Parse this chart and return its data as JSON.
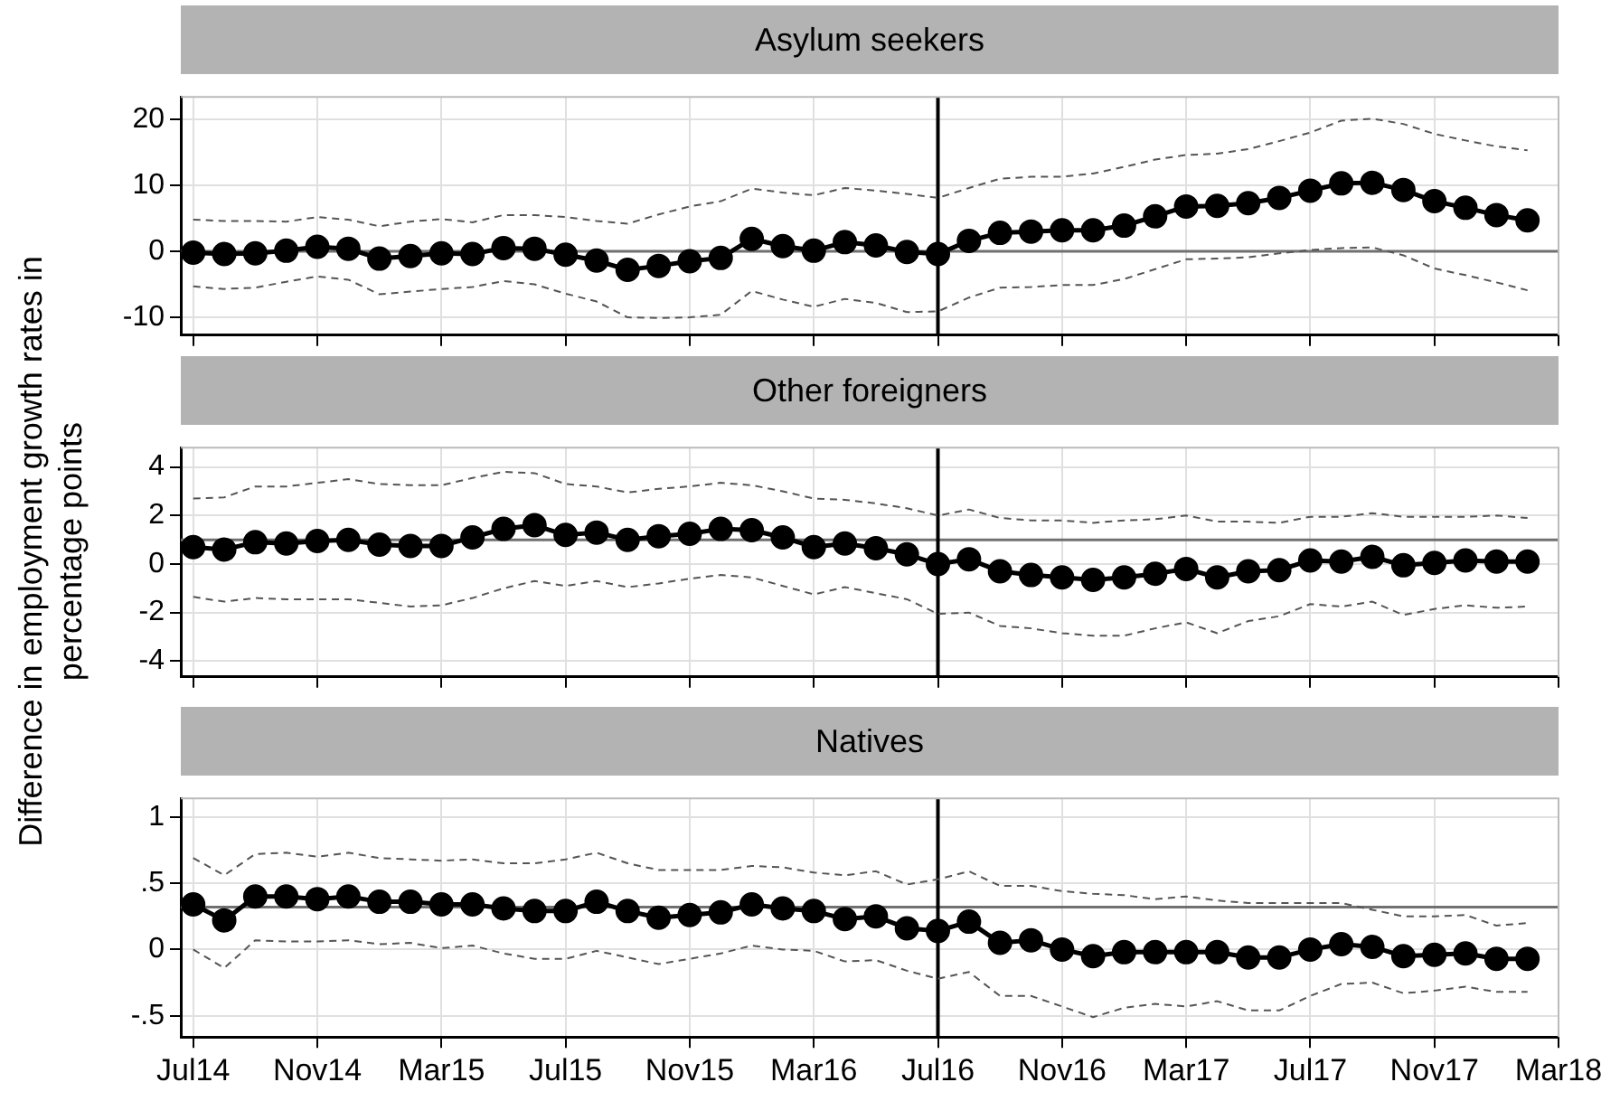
{
  "chart_data": [
    {
      "type": "line",
      "title": "Asylum seekers",
      "tick_labels": "y",
      "grid": true,
      "legend": false,
      "x": [
        "2014-07",
        "2014-08",
        "2014-09",
        "2014-10",
        "2014-11",
        "2014-12",
        "2015-01",
        "2015-02",
        "2015-03",
        "2015-04",
        "2015-05",
        "2015-06",
        "2015-07",
        "2015-08",
        "2015-09",
        "2015-10",
        "2015-11",
        "2015-12",
        "2016-01",
        "2016-02",
        "2016-03",
        "2016-04",
        "2016-05",
        "2016-06",
        "2016-07",
        "2016-08",
        "2016-09",
        "2016-10",
        "2016-11",
        "2016-12",
        "2017-01",
        "2017-02",
        "2017-03",
        "2017-04",
        "2017-05",
        "2017-06",
        "2017-07",
        "2017-08",
        "2017-09",
        "2017-10",
        "2017-11",
        "2017-12",
        "2018-01",
        "2018-02"
      ],
      "xlim": [
        "2014-06-19",
        "2018-03"
      ],
      "xticks": [
        {
          "value": "2014-07",
          "label": null
        },
        {
          "value": "2014-11",
          "label": null
        },
        {
          "value": "2015-03",
          "label": null
        },
        {
          "value": "2015-07",
          "label": null
        },
        {
          "value": "2015-11",
          "label": null
        },
        {
          "value": "2016-03",
          "label": null
        },
        {
          "value": "2016-07",
          "label": null
        },
        {
          "value": "2016-11",
          "label": null
        },
        {
          "value": "2017-03",
          "label": null
        },
        {
          "value": "2017-07",
          "label": null
        },
        {
          "value": "2017-11",
          "label": null
        },
        {
          "value": "2018-03",
          "label": null
        }
      ],
      "ylim": [
        -12.7,
        23.4
      ],
      "yticks": [
        -10,
        0,
        10,
        20
      ],
      "ref_lines": [
        {
          "axis": "y",
          "value": 0,
          "color": "#707070"
        },
        {
          "axis": "x",
          "value": "2016-07",
          "color": "#000000"
        }
      ],
      "series": [
        {
          "color": "#000000",
          "marker": "circle",
          "line_style": "solid",
          "values": [
            -0.2,
            -0.4,
            -0.3,
            0.1,
            0.7,
            0.4,
            -1.1,
            -0.7,
            -0.3,
            -0.4,
            0.5,
            0.4,
            -0.5,
            -1.4,
            -2.8,
            -2.2,
            -1.5,
            -1,
            1.9,
            0.8,
            0.1,
            1.4,
            0.9,
            -0.1,
            -0.4,
            1.6,
            2.8,
            3,
            3.2,
            3.2,
            3.9,
            5.3,
            6.8,
            6.9,
            7.3,
            8.1,
            9.2,
            10.3,
            10.4,
            9.3,
            7.6,
            6.6,
            5.5,
            4.7
          ]
        },
        {
          "color": "#555555",
          "marker": "none",
          "line_style": "dashed",
          "values": [
            4.8,
            4.6,
            4.6,
            4.5,
            5.2,
            4.8,
            3.8,
            4.5,
            4.9,
            4.4,
            5.5,
            5.5,
            5.2,
            4.6,
            4.2,
            5.6,
            6.8,
            7.6,
            9.5,
            8.9,
            8.5,
            9.6,
            9.2,
            8.7,
            8.1,
            9.6,
            11,
            11.3,
            11.3,
            11.8,
            12.8,
            13.9,
            14.6,
            14.8,
            15.5,
            16.7,
            18,
            19.8,
            20.1,
            19.3,
            17.8,
            16.8,
            15.9,
            15.3
          ]
        },
        {
          "color": "#555555",
          "marker": "none",
          "line_style": "dashed",
          "values": [
            -5.3,
            -5.7,
            -5.5,
            -4.6,
            -3.8,
            -4.3,
            -6.5,
            -6.1,
            -5.7,
            -5.4,
            -4.5,
            -5,
            -6.4,
            -7.6,
            -10,
            -10.1,
            -10,
            -9.6,
            -6,
            -7.3,
            -8.4,
            -7.2,
            -7.8,
            -9.2,
            -9.1,
            -7,
            -5.5,
            -5.4,
            -5.1,
            -5.1,
            -4.2,
            -2.7,
            -1.2,
            -1.1,
            -0.9,
            -0.3,
            0.2,
            0.5,
            0.6,
            -0.6,
            -2.6,
            -3.6,
            -4.7,
            -5.9
          ]
        }
      ]
    },
    {
      "type": "line",
      "title": "Other foreigners",
      "ylabel": "Difference in employment growth rates in percentage points",
      "tick_labels": "y",
      "grid": true,
      "legend": false,
      "x": [
        "2014-07",
        "2014-08",
        "2014-09",
        "2014-10",
        "2014-11",
        "2014-12",
        "2015-01",
        "2015-02",
        "2015-03",
        "2015-04",
        "2015-05",
        "2015-06",
        "2015-07",
        "2015-08",
        "2015-09",
        "2015-10",
        "2015-11",
        "2015-12",
        "2016-01",
        "2016-02",
        "2016-03",
        "2016-04",
        "2016-05",
        "2016-06",
        "2016-07",
        "2016-08",
        "2016-09",
        "2016-10",
        "2016-11",
        "2016-12",
        "2017-01",
        "2017-02",
        "2017-03",
        "2017-04",
        "2017-05",
        "2017-06",
        "2017-07",
        "2017-08",
        "2017-09",
        "2017-10",
        "2017-11",
        "2017-12",
        "2018-01",
        "2018-02"
      ],
      "xlim": [
        "2014-06-19",
        "2018-03"
      ],
      "xticks": [
        {
          "value": "2014-07",
          "label": null
        },
        {
          "value": "2014-11",
          "label": null
        },
        {
          "value": "2015-03",
          "label": null
        },
        {
          "value": "2015-07",
          "label": null
        },
        {
          "value": "2015-11",
          "label": null
        },
        {
          "value": "2016-03",
          "label": null
        },
        {
          "value": "2016-07",
          "label": null
        },
        {
          "value": "2016-11",
          "label": null
        },
        {
          "value": "2017-03",
          "label": null
        },
        {
          "value": "2017-07",
          "label": null
        },
        {
          "value": "2017-11",
          "label": null
        },
        {
          "value": "2018-03",
          "label": null
        }
      ],
      "ylim": [
        -4.65,
        4.8
      ],
      "yticks": [
        -4,
        -2,
        0,
        2,
        4
      ],
      "ref_lines": [
        {
          "axis": "y",
          "value": 1,
          "color": "#707070"
        },
        {
          "axis": "x",
          "value": "2016-07",
          "color": "#000000"
        }
      ],
      "series": [
        {
          "color": "#000000",
          "marker": "circle",
          "line_style": "solid",
          "values": [
            0.7,
            0.6,
            0.9,
            0.85,
            0.95,
            1.0,
            0.8,
            0.75,
            0.75,
            1.1,
            1.45,
            1.6,
            1.2,
            1.3,
            1.0,
            1.15,
            1.25,
            1.45,
            1.4,
            1.1,
            0.7,
            0.85,
            0.65,
            0.4,
            0,
            0.2,
            -0.3,
            -0.45,
            -0.55,
            -0.65,
            -0.55,
            -0.4,
            -0.2,
            -0.55,
            -0.3,
            -0.25,
            0.15,
            0.1,
            0.3,
            -0.05,
            0.05,
            0.15,
            0.1,
            0.1
          ]
        },
        {
          "color": "#555555",
          "marker": "none",
          "line_style": "dashed",
          "values": [
            2.7,
            2.75,
            3.2,
            3.2,
            3.35,
            3.5,
            3.3,
            3.25,
            3.25,
            3.55,
            3.8,
            3.75,
            3.3,
            3.2,
            2.95,
            3.1,
            3.2,
            3.35,
            3.25,
            3,
            2.7,
            2.65,
            2.5,
            2.3,
            2.0,
            2.25,
            1.9,
            1.8,
            1.8,
            1.7,
            1.8,
            1.85,
            2.0,
            1.75,
            1.75,
            1.7,
            1.95,
            1.95,
            2.1,
            1.95,
            1.95,
            1.95,
            2.0,
            1.9
          ]
        },
        {
          "color": "#555555",
          "marker": "none",
          "line_style": "dashed",
          "values": [
            -1.35,
            -1.55,
            -1.4,
            -1.45,
            -1.45,
            -1.45,
            -1.6,
            -1.75,
            -1.7,
            -1.4,
            -1.0,
            -0.7,
            -0.9,
            -0.7,
            -0.95,
            -0.8,
            -0.6,
            -0.45,
            -0.55,
            -0.9,
            -1.25,
            -0.95,
            -1.2,
            -1.45,
            -2.05,
            -2.0,
            -2.55,
            -2.65,
            -2.85,
            -2.95,
            -2.95,
            -2.65,
            -2.4,
            -2.85,
            -2.35,
            -2.15,
            -1.65,
            -1.75,
            -1.55,
            -2.1,
            -1.85,
            -1.7,
            -1.8,
            -1.75
          ]
        }
      ]
    },
    {
      "type": "line",
      "title": "Natives",
      "grid": true,
      "legend": false,
      "x": [
        "2014-07",
        "2014-08",
        "2014-09",
        "2014-10",
        "2014-11",
        "2014-12",
        "2015-01",
        "2015-02",
        "2015-03",
        "2015-04",
        "2015-05",
        "2015-06",
        "2015-07",
        "2015-08",
        "2015-09",
        "2015-10",
        "2015-11",
        "2015-12",
        "2016-01",
        "2016-02",
        "2016-03",
        "2016-04",
        "2016-05",
        "2016-06",
        "2016-07",
        "2016-08",
        "2016-09",
        "2016-10",
        "2016-11",
        "2016-12",
        "2017-01",
        "2017-02",
        "2017-03",
        "2017-04",
        "2017-05",
        "2017-06",
        "2017-07",
        "2017-08",
        "2017-09",
        "2017-10",
        "2017-11",
        "2017-12",
        "2018-01",
        "2018-02"
      ],
      "xlim": [
        "2014-06-19",
        "2018-03"
      ],
      "xticks": [
        {
          "value": "2014-07",
          "label": "Jul14"
        },
        {
          "value": "2014-11",
          "label": "Nov14"
        },
        {
          "value": "2015-03",
          "label": "Mar15"
        },
        {
          "value": "2015-07",
          "label": "Jul15"
        },
        {
          "value": "2015-11",
          "label": "Nov15"
        },
        {
          "value": "2016-03",
          "label": "Mar16"
        },
        {
          "value": "2016-07",
          "label": "Jul16"
        },
        {
          "value": "2016-11",
          "label": "Nov16"
        },
        {
          "value": "2017-03",
          "label": "Mar17"
        },
        {
          "value": "2017-07",
          "label": "Jul17"
        },
        {
          "value": "2017-11",
          "label": "Nov17"
        },
        {
          "value": "2018-03",
          "label": "Mar18"
        }
      ],
      "ylim": [
        -0.66,
        1.14
      ],
      "yticks": [
        {
          "value": -0.5,
          "label": "-.5"
        },
        0,
        {
          "value": 0.5,
          "label": ".5"
        },
        1
      ],
      "ref_lines": [
        {
          "axis": "y",
          "value": 0.32,
          "color": "#707070"
        },
        {
          "axis": "x",
          "value": "2016-07",
          "color": "#000000"
        }
      ],
      "series": [
        {
          "color": "#000000",
          "marker": "circle",
          "line_style": "solid",
          "values": [
            0.34,
            0.22,
            0.4,
            0.4,
            0.38,
            0.4,
            0.36,
            0.36,
            0.34,
            0.34,
            0.31,
            0.29,
            0.29,
            0.36,
            0.29,
            0.24,
            0.26,
            0.28,
            0.34,
            0.31,
            0.29,
            0.23,
            0.25,
            0.16,
            0.14,
            0.21,
            0.05,
            0.07,
            0,
            -0.05,
            -0.02,
            -0.02,
            -0.02,
            -0.02,
            -0.06,
            -0.06,
            0,
            0.04,
            0.02,
            -0.05,
            -0.04,
            -0.03,
            -0.07,
            -0.07
          ]
        },
        {
          "color": "#555555",
          "marker": "none",
          "line_style": "dashed",
          "values": [
            0.69,
            0.56,
            0.72,
            0.73,
            0.7,
            0.73,
            0.69,
            0.68,
            0.67,
            0.68,
            0.65,
            0.65,
            0.68,
            0.73,
            0.65,
            0.6,
            0.6,
            0.6,
            0.63,
            0.62,
            0.58,
            0.56,
            0.59,
            0.49,
            0.53,
            0.59,
            0.48,
            0.48,
            0.44,
            0.42,
            0.41,
            0.38,
            0.4,
            0.37,
            0.35,
            0.35,
            0.35,
            0.35,
            0.3,
            0.25,
            0.25,
            0.26,
            0.18,
            0.2
          ]
        },
        {
          "color": "#555555",
          "marker": "none",
          "line_style": "dashed",
          "values": [
            0,
            -0.14,
            0.07,
            0.06,
            0.06,
            0.07,
            0.04,
            0.05,
            0.01,
            0.03,
            -0.03,
            -0.07,
            -0.07,
            -0.01,
            -0.06,
            -0.11,
            -0.07,
            -0.03,
            0.03,
            0,
            -0.01,
            -0.09,
            -0.08,
            -0.16,
            -0.22,
            -0.17,
            -0.35,
            -0.35,
            -0.43,
            -0.51,
            -0.44,
            -0.41,
            -0.43,
            -0.39,
            -0.46,
            -0.46,
            -0.35,
            -0.26,
            -0.25,
            -0.33,
            -0.31,
            -0.28,
            -0.32,
            -0.32
          ]
        }
      ]
    }
  ]
}
